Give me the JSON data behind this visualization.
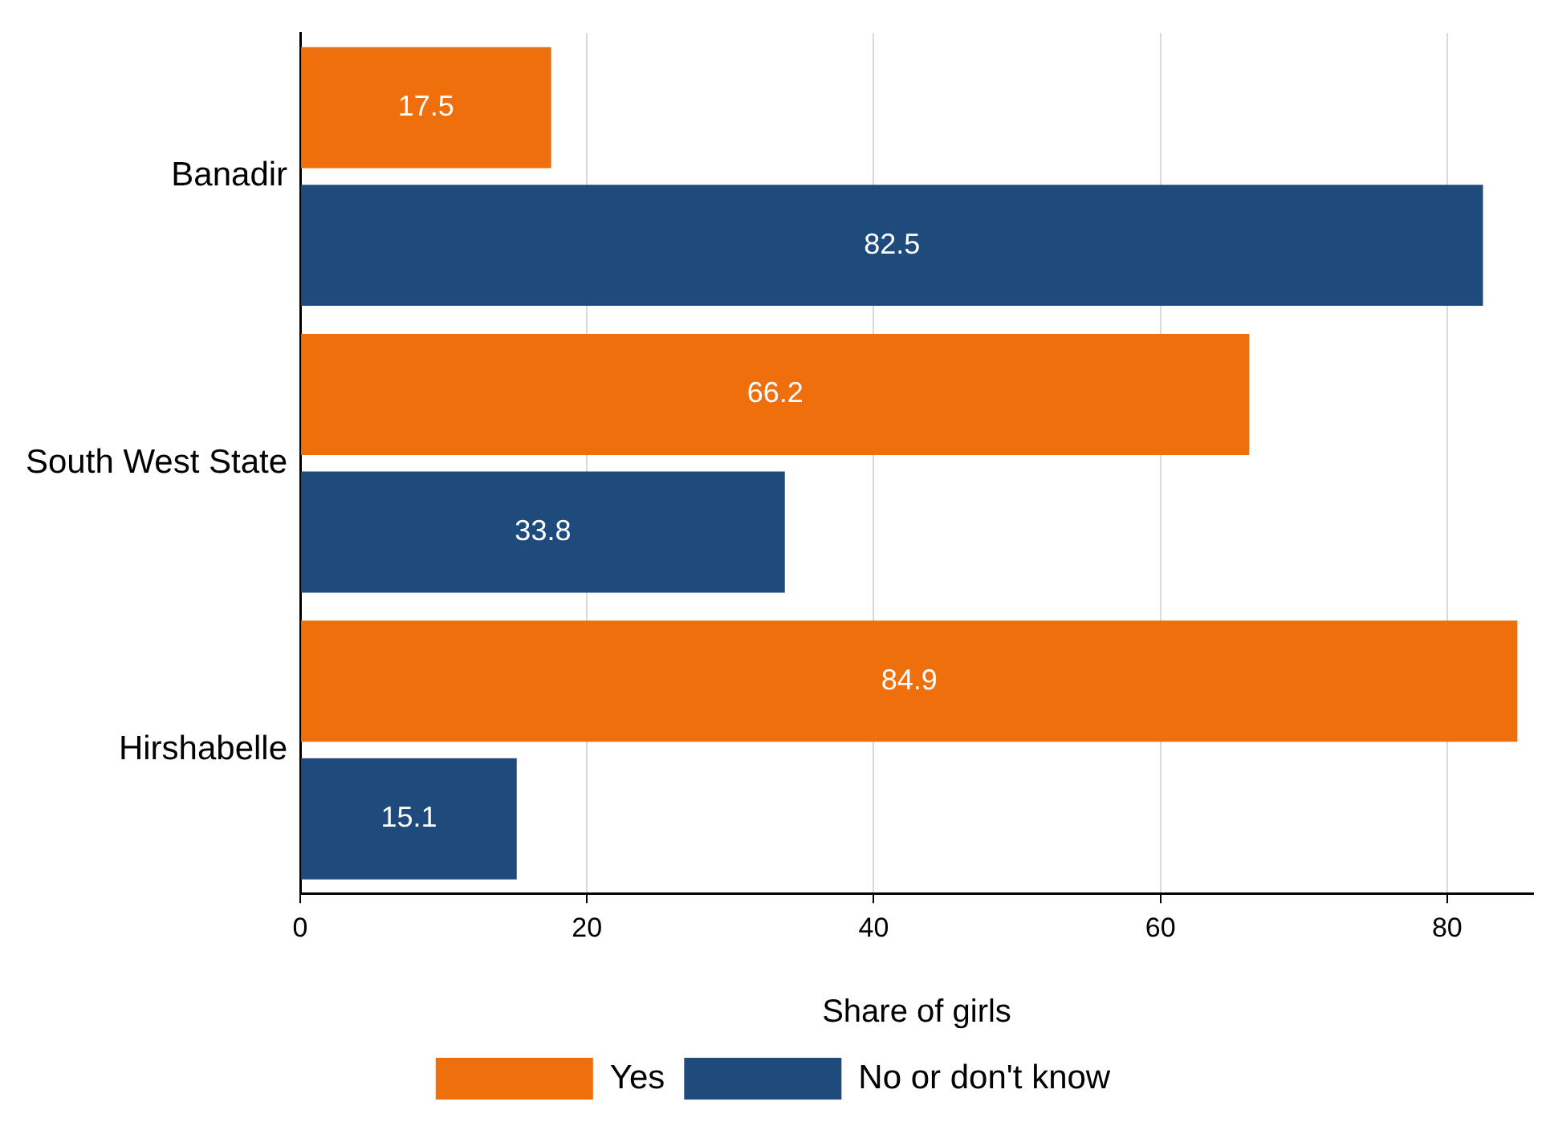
{
  "chart_data": {
    "type": "bar",
    "orientation": "horizontal",
    "xlabel": "Share of girls",
    "categories": [
      "Banadir",
      "South West State",
      "Hirshabelle"
    ],
    "series": [
      {
        "name": "Yes",
        "color": "#ef6f0c",
        "values": [
          17.5,
          66.2,
          84.9
        ]
      },
      {
        "name": "No or don't know",
        "color": "#1f4a7c",
        "values": [
          82.5,
          33.8,
          15.1
        ]
      }
    ],
    "xlim": [
      0,
      86
    ],
    "xticks": [
      0,
      20,
      40,
      60,
      80
    ],
    "grid": "x",
    "legend": "bottom",
    "data_labels": true
  }
}
